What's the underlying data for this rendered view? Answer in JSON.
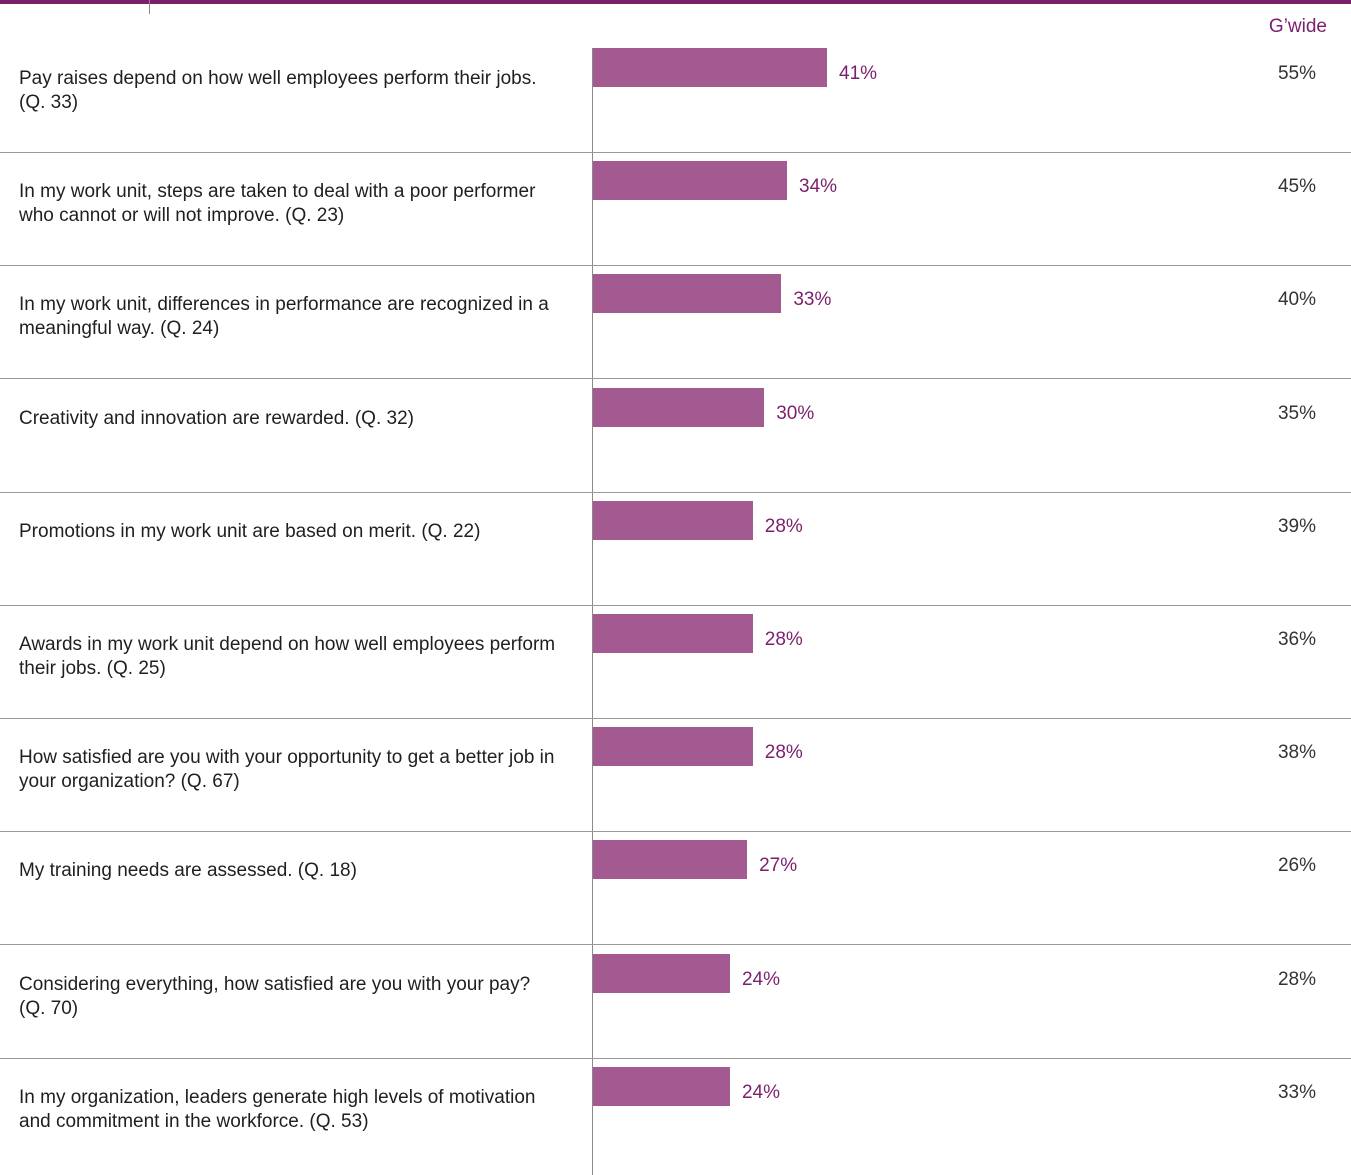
{
  "colors": {
    "bar": "#a35a91",
    "accent": "#7b1f6d",
    "rule": "#7b1f6d"
  },
  "chart_data": {
    "type": "bar",
    "orientation": "horizontal",
    "header_label": "G’wide",
    "xlim": [
      0,
      100
    ],
    "grid": false,
    "categories": [
      "Pay raises depend on how well employees perform their jobs. (Q. 33)",
      "In my work unit, steps are taken to deal with a poor performer who cannot or will not improve. (Q. 23)",
      "In my work unit, differences in performance are recognized in a meaningful way. (Q. 24)",
      "Creativity and innovation are rewarded. (Q. 32)",
      "Promotions in my work unit are based on merit. (Q. 22)",
      "Awards in my work unit depend on how well employees perform their jobs. (Q. 25)",
      "How satisfied are you with your opportunity to get a better job in your organization? (Q. 67)",
      "My training needs are assessed. (Q. 18)",
      "Considering everything, how satisfied are you with your pay? (Q. 70)",
      "In my organization, leaders generate high levels of motivation and commitment in the workforce. (Q. 53)"
    ],
    "values": [
      41,
      34,
      33,
      30,
      28,
      28,
      28,
      27,
      24,
      24
    ],
    "value_labels": [
      "41%",
      "34%",
      "33%",
      "30%",
      "28%",
      "28%",
      "28%",
      "27%",
      "24%",
      "24%"
    ],
    "gwide_values": [
      55,
      45,
      40,
      35,
      39,
      36,
      38,
      26,
      28,
      33
    ],
    "gwide_labels": [
      "55%",
      "45%",
      "40%",
      "35%",
      "39%",
      "36%",
      "38%",
      "26%",
      "28%",
      "33%"
    ]
  }
}
